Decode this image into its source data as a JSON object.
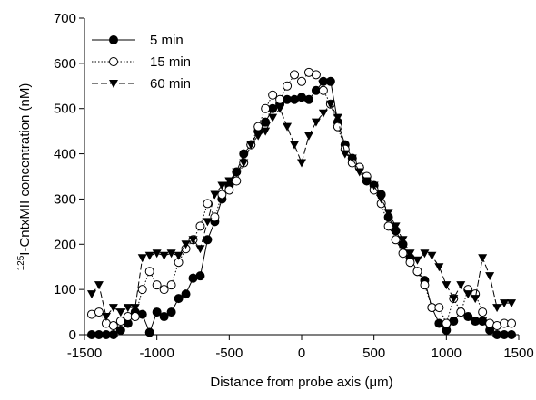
{
  "chart_data": {
    "type": "line",
    "xlabel": "Distance from probe axis (μm)",
    "ylabel": {
      "superscript": "125",
      "text": "I-CntxMII concentration (nM)"
    },
    "xlim": [
      -1500,
      1500
    ],
    "xticks": [
      -1500,
      -1000,
      -500,
      0,
      500,
      1000,
      1500
    ],
    "ylim": [
      0,
      700
    ],
    "yticks": [
      0,
      100,
      200,
      300,
      400,
      500,
      600,
      700
    ],
    "legend": "upper-left",
    "x": [
      -1450,
      -1400,
      -1350,
      -1300,
      -1250,
      -1200,
      -1150,
      -1100,
      -1050,
      -1000,
      -950,
      -900,
      -850,
      -800,
      -750,
      -700,
      -650,
      -600,
      -550,
      -500,
      -450,
      -400,
      -350,
      -300,
      -250,
      -200,
      -150,
      -100,
      -50,
      0,
      50,
      100,
      150,
      200,
      250,
      300,
      350,
      400,
      450,
      500,
      550,
      600,
      650,
      700,
      750,
      800,
      850,
      900,
      950,
      1000,
      1050,
      1100,
      1150,
      1200,
      1250,
      1300,
      1350,
      1400,
      1450
    ],
    "series": [
      {
        "name": "5 min",
        "color": "#000000",
        "marker": "filled-circle",
        "dash": "solid",
        "values": [
          0,
          0,
          0,
          0,
          10,
          25,
          50,
          45,
          5,
          50,
          40,
          50,
          80,
          90,
          125,
          130,
          210,
          250,
          300,
          330,
          360,
          400,
          420,
          450,
          470,
          500,
          510,
          520,
          520,
          525,
          520,
          540,
          560,
          560,
          470,
          420,
          390,
          370,
          340,
          330,
          310,
          260,
          230,
          200,
          170,
          140,
          120,
          60,
          25,
          10,
          30,
          50,
          40,
          30,
          30,
          10,
          0,
          0,
          0
        ]
      },
      {
        "name": "15 min",
        "color": "#000000",
        "marker": "open-circle",
        "dash": "dotted",
        "values": [
          45,
          50,
          25,
          20,
          30,
          40,
          40,
          100,
          140,
          110,
          100,
          110,
          160,
          190,
          210,
          240,
          290,
          260,
          310,
          320,
          340,
          380,
          420,
          460,
          500,
          530,
          520,
          550,
          575,
          560,
          580,
          575,
          540,
          510,
          460,
          410,
          380,
          370,
          350,
          320,
          290,
          240,
          210,
          180,
          160,
          140,
          110,
          60,
          60,
          25,
          80,
          50,
          100,
          90,
          50,
          25,
          20,
          25,
          25
        ]
      },
      {
        "name": "60 min",
        "color": "#000000",
        "marker": "filled-triangle-down",
        "dash": "dashed",
        "values": [
          90,
          110,
          40,
          60,
          50,
          60,
          60,
          170,
          175,
          180,
          175,
          180,
          175,
          200,
          210,
          190,
          250,
          310,
          330,
          340,
          360,
          380,
          420,
          440,
          450,
          480,
          500,
          460,
          420,
          380,
          440,
          470,
          490,
          510,
          480,
          400,
          390,
          360,
          340,
          330,
          300,
          270,
          240,
          210,
          180,
          165,
          180,
          175,
          150,
          110,
          80,
          110,
          90,
          80,
          170,
          130,
          60,
          70,
          70
        ]
      }
    ]
  }
}
